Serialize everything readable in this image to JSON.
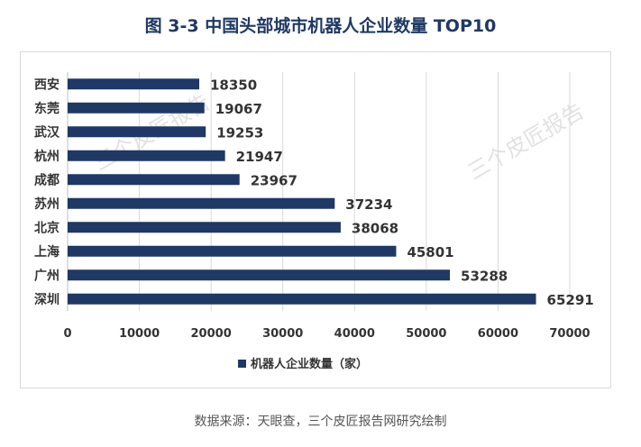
{
  "chart_data": {
    "type": "bar",
    "orientation": "horizontal",
    "title": "图  3-3  中国头部城市机器人企业数量 TOP10",
    "categories": [
      "西安",
      "东莞",
      "武汉",
      "杭州",
      "成都",
      "苏州",
      "北京",
      "上海",
      "广州",
      "深圳"
    ],
    "values": [
      18350,
      19067,
      19253,
      21947,
      23967,
      37234,
      38068,
      45801,
      53288,
      65291
    ],
    "xlim": [
      0,
      70000
    ],
    "xticks": [
      0,
      10000,
      20000,
      30000,
      40000,
      50000,
      60000,
      70000
    ],
    "xtick_labels": [
      "0",
      "10000",
      "20000",
      "30000",
      "40000",
      "50000",
      "60000",
      "70000"
    ],
    "grid": true,
    "legend": {
      "label": "机器人企业数量（家）",
      "position": "bottom"
    },
    "colors": {
      "bar": "#1f3864",
      "grid": "#d9d9d9",
      "axis": "#bfbfbf"
    }
  },
  "source": "数据来源：天眼查，三个皮匠报告网研究绘制",
  "watermarks": [
    "三个皮匠报告",
    "三个皮匠报告"
  ]
}
